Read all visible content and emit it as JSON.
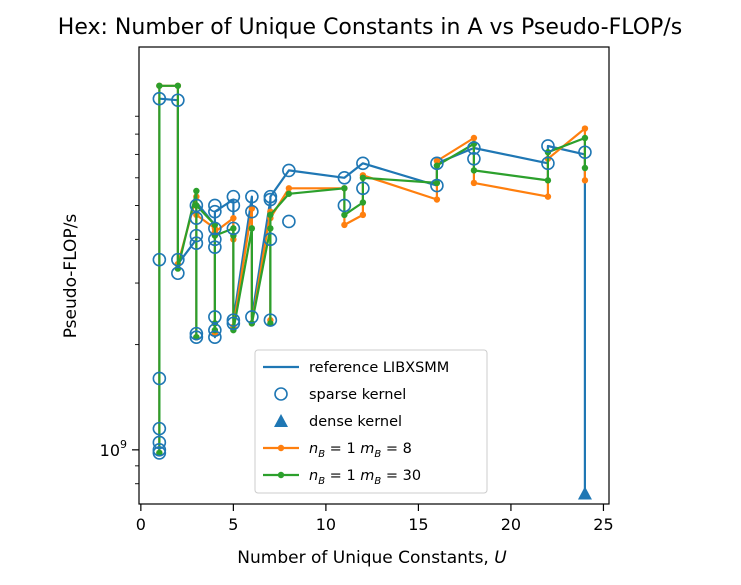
{
  "chart_data": {
    "type": "scatter",
    "title": "Hex: Number of Unique Constants in A vs Pseudo-FLOP/s",
    "xlabel": "Number of Unique Constants, U",
    "ylabel": "Pseudo-FLOP/s",
    "xlim": [
      -0.1,
      25.3
    ],
    "ylim": [
      700000000.0,
      14200000000.0
    ],
    "yscale": "log",
    "xticks": [
      0,
      5,
      10,
      15,
      20,
      25
    ],
    "yticks": [
      {
        "value": 1000000000.0,
        "label": "10^9"
      }
    ],
    "legend_position": "lower-center",
    "colors": {
      "blue": "#1f77b4",
      "orange": "#ff7f0e",
      "green": "#2ca02c"
    },
    "series": [
      {
        "name": "reference LIBXSMM",
        "kind": "line",
        "color": "#1f77b4",
        "points": [
          [
            1,
            980000000.0
          ],
          [
            1,
            10100000000.0
          ],
          [
            2,
            10000000000.0
          ],
          [
            2,
            3400000000.0
          ],
          [
            3,
            4000000000.0
          ],
          [
            3,
            2100000000.0
          ],
          [
            3,
            5100000000.0
          ],
          [
            4,
            4400000000.0
          ],
          [
            4,
            2100000000.0
          ],
          [
            4,
            2400000000.0
          ],
          [
            4,
            4800000000.0
          ],
          [
            5,
            5200000000.0
          ],
          [
            5,
            4200000000.0
          ],
          [
            5,
            2350000000.0
          ],
          [
            6,
            5300000000.0
          ],
          [
            6,
            2400000000.0
          ],
          [
            7,
            5200000000.0
          ],
          [
            7,
            2350000000.0
          ],
          [
            7,
            5300000000.0
          ],
          [
            8,
            6300000000.0
          ],
          [
            11,
            6000000000.0
          ],
          [
            12,
            6600000000.0
          ],
          [
            16,
            5700000000.0
          ],
          [
            16,
            6600000000.0
          ],
          [
            18,
            7300000000.0
          ],
          [
            22,
            6600000000.0
          ],
          [
            22,
            7400000000.0
          ],
          [
            24,
            7000000000.0
          ],
          [
            24,
            750000000.0
          ]
        ]
      },
      {
        "name": "sparse kernel",
        "kind": "marker",
        "marker": "open-circle",
        "color": "#1f77b4",
        "points": [
          [
            1,
            10100000000.0
          ],
          [
            1,
            3500000000.0
          ],
          [
            1,
            1600000000.0
          ],
          [
            1,
            1150000000.0
          ],
          [
            1,
            1050000000.0
          ],
          [
            1,
            1000000000.0
          ],
          [
            1,
            980000000.0
          ],
          [
            2,
            10000000000.0
          ],
          [
            2,
            3500000000.0
          ],
          [
            2,
            3200000000.0
          ],
          [
            3,
            5000000000.0
          ],
          [
            3,
            4600000000.0
          ],
          [
            3,
            4100000000.0
          ],
          [
            3,
            3900000000.0
          ],
          [
            3,
            2100000000.0
          ],
          [
            3,
            2150000000.0
          ],
          [
            4,
            5000000000.0
          ],
          [
            4,
            4800000000.0
          ],
          [
            4,
            4300000000.0
          ],
          [
            4,
            4000000000.0
          ],
          [
            4,
            3800000000.0
          ],
          [
            4,
            2400000000.0
          ],
          [
            4,
            2200000000.0
          ],
          [
            4,
            2100000000.0
          ],
          [
            5,
            5300000000.0
          ],
          [
            5,
            5000000000.0
          ],
          [
            5,
            4300000000.0
          ],
          [
            5,
            2350000000.0
          ],
          [
            5,
            2300000000.0
          ],
          [
            6,
            5300000000.0
          ],
          [
            6,
            4800000000.0
          ],
          [
            6,
            2400000000.0
          ],
          [
            7,
            5200000000.0
          ],
          [
            7,
            5300000000.0
          ],
          [
            7,
            4000000000.0
          ],
          [
            7,
            2350000000.0
          ],
          [
            8,
            6300000000.0
          ],
          [
            8,
            4500000000.0
          ],
          [
            11,
            6000000000.0
          ],
          [
            11,
            5000000000.0
          ],
          [
            12,
            6600000000.0
          ],
          [
            12,
            5600000000.0
          ],
          [
            16,
            5700000000.0
          ],
          [
            16,
            6600000000.0
          ],
          [
            18,
            7300000000.0
          ],
          [
            18,
            6800000000.0
          ],
          [
            22,
            7400000000.0
          ],
          [
            22,
            6600000000.0
          ],
          [
            24,
            7100000000.0
          ]
        ]
      },
      {
        "name": "dense kernel",
        "kind": "marker",
        "marker": "triangle",
        "color": "#1f77b4",
        "points": [
          [
            24,
            750000000.0
          ]
        ]
      },
      {
        "name": "n_B = 1 m_B = 8",
        "kind": "line-marker",
        "color": "#ff7f0e",
        "points": [
          [
            1,
            980000000.0
          ],
          [
            1,
            11000000000.0
          ],
          [
            2,
            11000000000.0
          ],
          [
            2,
            3400000000.0
          ],
          [
            3,
            5300000000.0
          ],
          [
            3,
            2100000000.0
          ],
          [
            3,
            4700000000.0
          ],
          [
            4,
            4300000000.0
          ],
          [
            4,
            2150000000.0
          ],
          [
            4,
            2300000000.0
          ],
          [
            4,
            4200000000.0
          ],
          [
            5,
            4600000000.0
          ],
          [
            5,
            4000000000.0
          ],
          [
            5,
            2250000000.0
          ],
          [
            6,
            4900000000.0
          ],
          [
            6,
            2300000000.0
          ],
          [
            7,
            4800000000.0
          ],
          [
            7,
            2350000000.0
          ],
          [
            7,
            4600000000.0
          ],
          [
            8,
            5600000000.0
          ],
          [
            11,
            5600000000.0
          ],
          [
            11,
            4400000000.0
          ],
          [
            12,
            4700000000.0
          ],
          [
            12,
            6100000000.0
          ],
          [
            16,
            5200000000.0
          ],
          [
            16,
            6700000000.0
          ],
          [
            18,
            7800000000.0
          ],
          [
            18,
            5800000000.0
          ],
          [
            22,
            5300000000.0
          ],
          [
            22,
            6800000000.0
          ],
          [
            24,
            8300000000.0
          ],
          [
            24,
            5900000000.0
          ]
        ]
      },
      {
        "name": "n_B = 1 m_B = 30",
        "kind": "line-marker",
        "color": "#2ca02c",
        "points": [
          [
            1,
            980000000.0
          ],
          [
            1,
            11000000000.0
          ],
          [
            2,
            11000000000.0
          ],
          [
            2,
            3300000000.0
          ],
          [
            3,
            5500000000.0
          ],
          [
            3,
            2100000000.0
          ],
          [
            3,
            5000000000.0
          ],
          [
            4,
            4400000000.0
          ],
          [
            4,
            2200000000.0
          ],
          [
            4,
            2300000000.0
          ],
          [
            4,
            4100000000.0
          ],
          [
            5,
            4300000000.0
          ],
          [
            5,
            4100000000.0
          ],
          [
            5,
            2200000000.0
          ],
          [
            6,
            4300000000.0
          ],
          [
            6,
            2300000000.0
          ],
          [
            7,
            4300000000.0
          ],
          [
            7,
            2300000000.0
          ],
          [
            7,
            4700000000.0
          ],
          [
            8,
            5400000000.0
          ],
          [
            11,
            5600000000.0
          ],
          [
            11,
            4700000000.0
          ],
          [
            12,
            5100000000.0
          ],
          [
            12,
            6000000000.0
          ],
          [
            16,
            5800000000.0
          ],
          [
            16,
            6500000000.0
          ],
          [
            18,
            7500000000.0
          ],
          [
            18,
            6300000000.0
          ],
          [
            22,
            5900000000.0
          ],
          [
            22,
            7100000000.0
          ],
          [
            24,
            7800000000.0
          ],
          [
            24,
            6400000000.0
          ]
        ]
      }
    ]
  }
}
